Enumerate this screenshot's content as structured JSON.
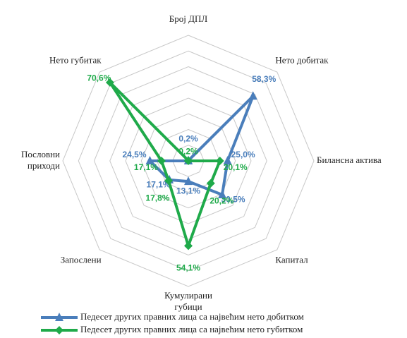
{
  "chart_data": {
    "type": "radar",
    "categories": [
      "Број ДПЛ",
      "Нето добитак",
      "Билансна актива",
      "Капитал",
      "Кумулирани губици",
      "Запослени",
      "Пословни приходи",
      "Нето губитак"
    ],
    "rlim": [
      0,
      80
    ],
    "rticks": [
      10,
      20,
      30,
      40,
      50,
      60,
      70,
      80
    ],
    "grid": true,
    "series": [
      {
        "name": "Педесет других правних лица са највећим нето добитком",
        "color": "#4a7ebb",
        "marker": "triangle",
        "values": [
          0.2,
          58.3,
          25.0,
          30.5,
          13.1,
          17.1,
          24.5,
          0
        ],
        "value_labels": [
          "0,2%",
          "58,3%",
          "25,0%",
          "30,5%",
          "13,1%",
          "17,1%",
          "24,5%",
          null
        ]
      },
      {
        "name": "Педесет других правних лица са највећим нето губитком",
        "color": "#1faa4a",
        "marker": "diamond",
        "values": [
          0.2,
          0,
          20.1,
          20.2,
          54.1,
          17.8,
          17.1,
          70.6
        ],
        "value_labels": [
          "0,2%",
          null,
          "20,1%",
          "20,2%",
          "54,1%",
          "17,8%",
          "17,1%",
          "70,6%"
        ]
      }
    ]
  }
}
